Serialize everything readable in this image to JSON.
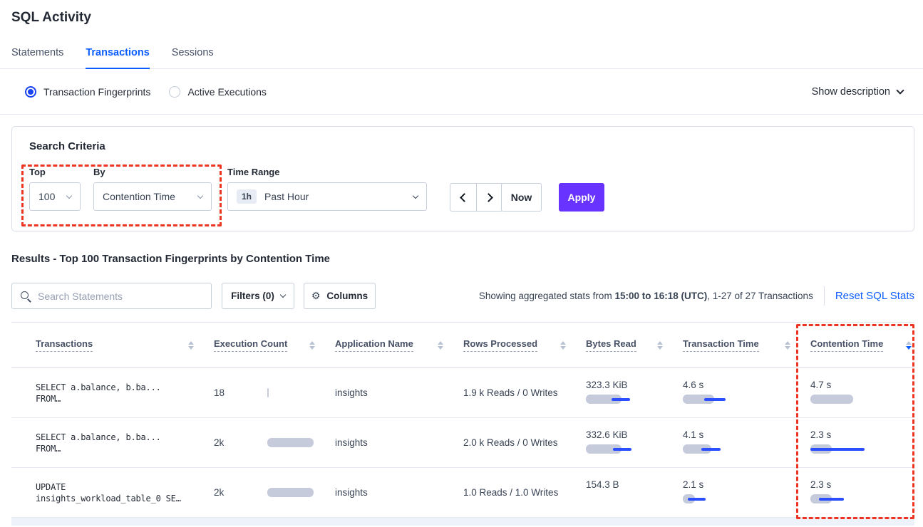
{
  "header": {
    "title": "SQL Activity",
    "tabs": [
      {
        "label": "Statements",
        "active": false
      },
      {
        "label": "Transactions",
        "active": true
      },
      {
        "label": "Sessions",
        "active": false
      }
    ]
  },
  "view_toggle": {
    "options": [
      {
        "label": "Transaction Fingerprints",
        "selected": true
      },
      {
        "label": "Active Executions",
        "selected": false
      }
    ],
    "show_description_label": "Show description"
  },
  "search_criteria": {
    "heading": "Search Criteria",
    "top_label": "Top",
    "top_value": "100",
    "by_label": "By",
    "by_value": "Contention Time",
    "time_range_label": "Time Range",
    "time_range_badge": "1h",
    "time_range_value": "Past Hour",
    "now_label": "Now",
    "apply_label": "Apply"
  },
  "results_bar": {
    "heading": "Results - Top 100 Transaction Fingerprints by Contention Time",
    "search_placeholder": "Search Statements",
    "filters_label": "Filters (0)",
    "columns_label": "Columns",
    "stats_prefix": "Showing aggregated stats from ",
    "stats_bold": "15:00 to 16:18 (UTC)",
    "stats_suffix": ", 1-27 of 27 Transactions",
    "reset_label": "Reset SQL Stats"
  },
  "table": {
    "headers": [
      {
        "label": "Transactions",
        "sort": "none"
      },
      {
        "label": "Execution Count",
        "sort": "none"
      },
      {
        "label": "Application Name",
        "sort": "none"
      },
      {
        "label": "Rows Processed",
        "sort": "none"
      },
      {
        "label": "Bytes Read",
        "sort": "none"
      },
      {
        "label": "Transaction Time",
        "sort": "none"
      },
      {
        "label": "Contention Time",
        "sort": "desc"
      }
    ],
    "rows": [
      {
        "transaction_line1": "SELECT a.balance, b.ba...",
        "transaction_line2": "FROM…",
        "execution_count": "18",
        "application_name": "insights",
        "rows_processed": "1.9 k Reads / 0 Writes",
        "bytes_read": "323.3 KiB",
        "transaction_time": "4.6 s",
        "contention_time": "4.7 s",
        "bars": {
          "execution_count": {
            "g": 2
          },
          "bytes_read": {
            "g": 50,
            "bx": 36,
            "bw": 26
          },
          "transaction_time": {
            "g": 44,
            "bx": 30,
            "bw": 30
          },
          "contention_time": {
            "g": 60
          }
        }
      },
      {
        "transaction_line1": "SELECT a.balance, b.ba...",
        "transaction_line2": "FROM…",
        "execution_count": "2k",
        "application_name": "insights",
        "rows_processed": "2.0 k Reads / 0 Writes",
        "bytes_read": "332.6 KiB",
        "transaction_time": "4.1 s",
        "contention_time": "2.3 s",
        "bars": {
          "execution_count": {
            "g": 65
          },
          "bytes_read": {
            "g": 50,
            "bx": 38,
            "bw": 26
          },
          "transaction_time": {
            "g": 40,
            "bx": 26,
            "bw": 27
          },
          "contention_time": {
            "g": 30,
            "bx": 0,
            "bw": 76
          }
        }
      },
      {
        "transaction_line1": "UPDATE",
        "transaction_line2": "insights_workload_table_0 SE…",
        "execution_count": "2k",
        "application_name": "insights",
        "rows_processed": "1.0 Reads / 1.0 Writes",
        "bytes_read": "154.3 B",
        "transaction_time": "2.1 s",
        "contention_time": "2.3 s",
        "bars": {
          "execution_count": {
            "g": 65
          },
          "transaction_time": {
            "g": 17,
            "bx": 7,
            "bw": 25
          },
          "contention_time": {
            "g": 30,
            "bx": 12,
            "bw": 35
          }
        }
      }
    ]
  },
  "colors": {
    "accent_blue": "#0b5dff",
    "apply_purple": "#6933ff",
    "annotation_red": "#ee3524",
    "bar_gray": "#c6cbdc",
    "bar_blue": "#2b4eff"
  }
}
